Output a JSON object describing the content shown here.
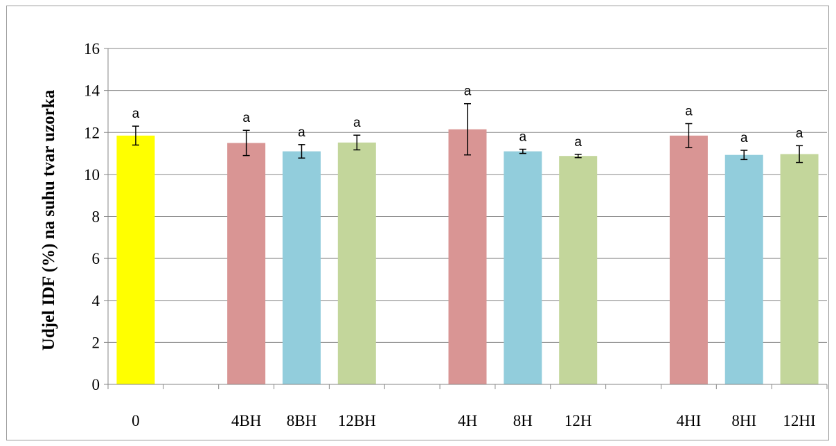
{
  "chart_data": {
    "type": "bar",
    "title": "",
    "xlabel": "",
    "ylabel": "Udjel IDF (%) na suhu tvar uzorka",
    "ylim": [
      0,
      16
    ],
    "yticks": [
      0,
      2,
      4,
      6,
      8,
      10,
      12,
      14,
      16
    ],
    "grid": true,
    "legend": "none",
    "slots": [
      "0",
      "",
      "4BH",
      "8BH",
      "12BH",
      "",
      "4H",
      "8H",
      "12H",
      "",
      "4HI",
      "8HI",
      "12HI"
    ],
    "categories": [
      "0",
      "4BH",
      "8BH",
      "12BH",
      "4H",
      "8H",
      "12H",
      "4HI",
      "8HI",
      "12HI"
    ],
    "values": [
      11.85,
      11.5,
      11.1,
      11.52,
      12.15,
      11.1,
      10.88,
      11.85,
      10.93,
      10.97
    ],
    "error": [
      0.45,
      0.6,
      0.32,
      0.35,
      1.22,
      0.1,
      0.08,
      0.57,
      0.22,
      0.4
    ],
    "significance": [
      "a",
      "a",
      "a",
      "a",
      "a",
      "a",
      "a",
      "a",
      "a",
      "a"
    ],
    "colors": [
      "#ffff00",
      "#d99594",
      "#92cddc",
      "#c3d69b",
      "#d99594",
      "#92cddc",
      "#c3d69b",
      "#d99594",
      "#92cddc",
      "#c3d69b"
    ],
    "axis_color": "#868686",
    "grid_color": "#868686"
  }
}
